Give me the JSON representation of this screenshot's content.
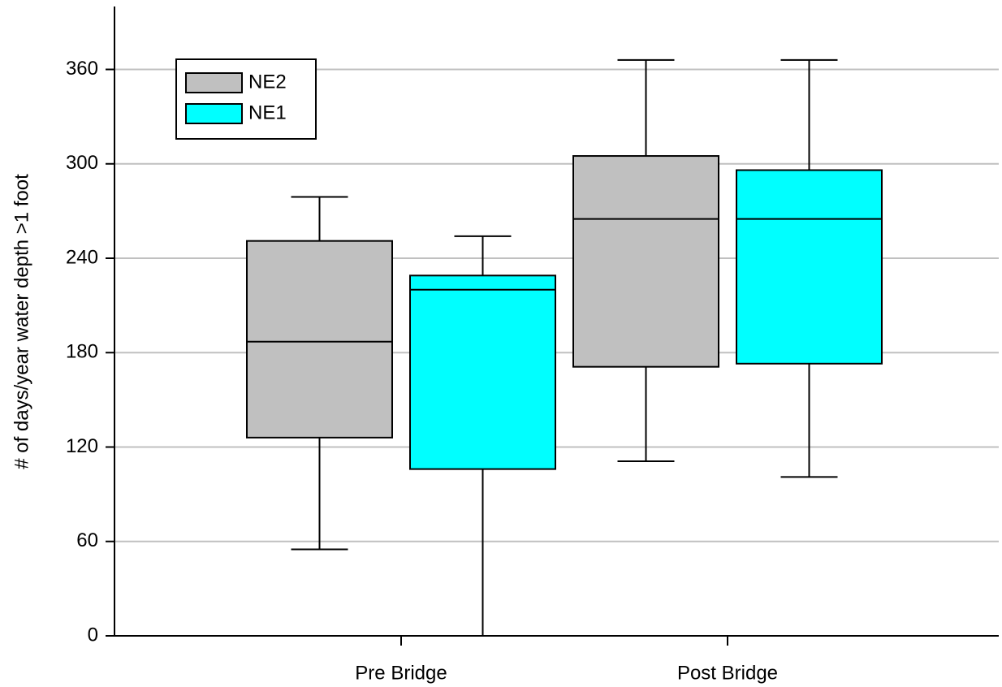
{
  "chart_data": {
    "type": "box",
    "y_label": "# of days/year water depth >1 foot",
    "categories": [
      "Pre Bridge",
      "Post Bridge"
    ],
    "series": [
      {
        "name": "NE2",
        "color": "#c0c0c0",
        "min": [
          55,
          111
        ],
        "q1": [
          126,
          171
        ],
        "median": [
          187,
          265
        ],
        "q3": [
          251,
          305
        ],
        "max": [
          279,
          366
        ]
      },
      {
        "name": "NE1",
        "color": "#00ffff",
        "min": [
          0,
          101
        ],
        "q1": [
          106,
          173
        ],
        "median": [
          220,
          265
        ],
        "q3": [
          229,
          296
        ],
        "max": [
          254,
          366
        ]
      }
    ],
    "ylim": [
      0,
      400
    ],
    "yticks": [
      0,
      60,
      120,
      180,
      240,
      300,
      360
    ],
    "grid": true,
    "legend": "upper left"
  }
}
